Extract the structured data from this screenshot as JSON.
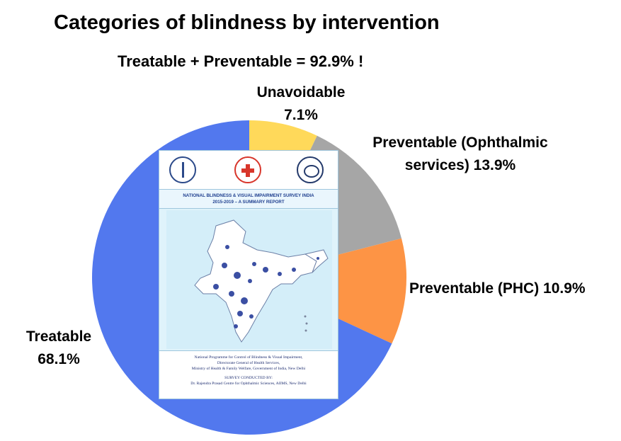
{
  "title": "Categories of blindness by intervention",
  "subtitle": "Treatable + Preventable = 92.9% !",
  "chart_data": {
    "type": "pie",
    "slices": [
      {
        "label": "Unavoidable",
        "value": 7.1,
        "display": "7.1%",
        "color": "#ffd95a"
      },
      {
        "label": "Preventable (Ophthalmic services)",
        "value": 13.9,
        "display": "13.9%",
        "color": "#a6a6a6"
      },
      {
        "label": "Preventable (PHC)",
        "value": 10.9,
        "display": "10.9%",
        "color": "#fd9445"
      },
      {
        "label": "Treatable",
        "value": 68.1,
        "display": "68.1%",
        "color": "#5278ee"
      }
    ],
    "start": "top",
    "direction": "clockwise"
  },
  "labels": {
    "unavoidable_1": "Unavoidable",
    "unavoidable_2": "7.1%",
    "ophthalmic_1": "Preventable (Ophthalmic",
    "ophthalmic_2": "services) 13.9%",
    "phc": "Preventable (PHC) 10.9%",
    "treatable_1": "Treatable",
    "treatable_2": "68.1%"
  },
  "cover": {
    "title_line1": "NATIONAL BLINDNESS & VISUAL IMPAIRMENT SURVEY INDIA",
    "title_line2": "2015-2019 – A SUMMARY REPORT",
    "bottom_line1": "National Programme for Control of Blindness & Visual Impairment,",
    "bottom_line2": "Directorate General of Health Services,",
    "bottom_line3": "Ministry of Health & Family Welfare, Government of India, New Delhi",
    "bottom_line4": "SURVEY CONDUCTED BY:",
    "bottom_line5": "Dr. Rajendra Prasad Centre for Ophthalmic Sciences, AIIMS, New Delhi"
  }
}
